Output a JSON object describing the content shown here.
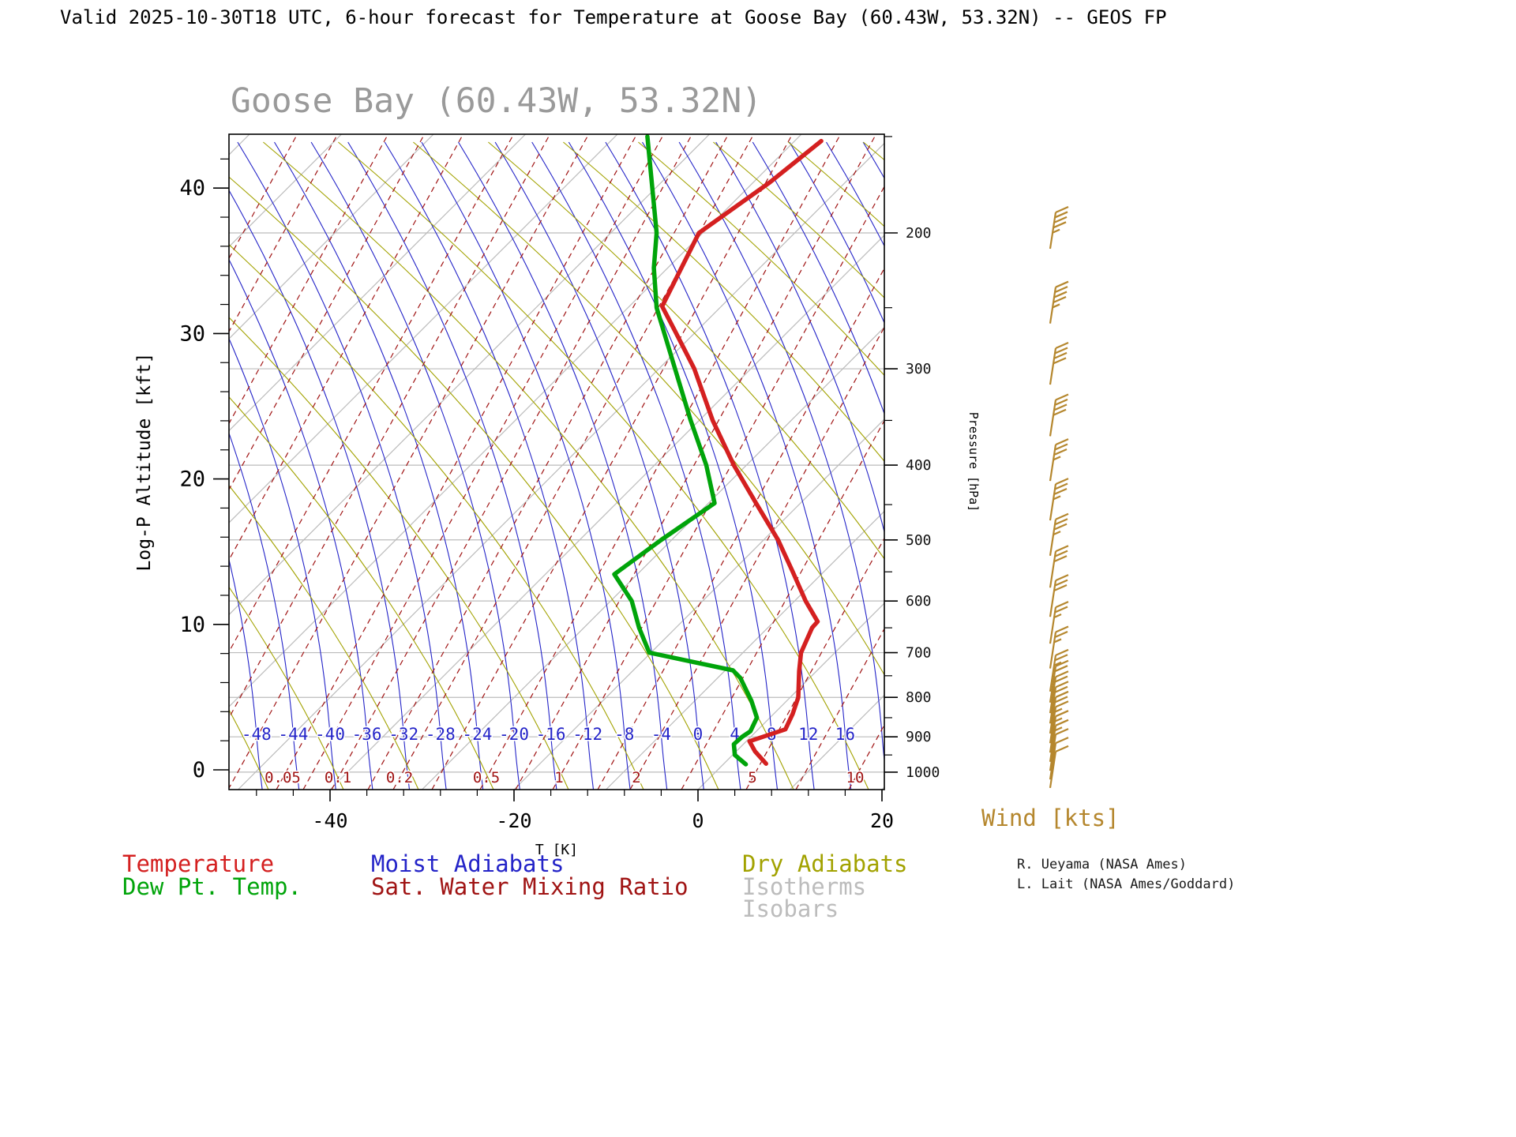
{
  "header": {
    "title": "Valid 2025-10-30T18 UTC, 6-hour forecast for Temperature at Goose Bay (60.43W, 53.32N) -- GEOS FP"
  },
  "chart_data": {
    "type": "skewt_log_p_sounding",
    "title": "Goose Bay (60.43W, 53.32N)",
    "station": {
      "name": "Goose Bay",
      "lon": "60.43W",
      "lat": "53.32N"
    },
    "model": "GEOS FP",
    "valid_time": "2025-10-30T18 UTC",
    "forecast": "6-hour forecast for Temperature",
    "x_axis": {
      "label": "T [K]",
      "ticks": [
        -40,
        -20,
        0,
        20
      ],
      "minor_step": 4
    },
    "y_axis_left": {
      "label": "Log-P Altitude [kft]",
      "ticks": [
        0,
        10,
        20,
        30,
        40
      ],
      "minor_step": 2
    },
    "y_axis_right": {
      "label": "Pressure [hPa]",
      "ticks": [
        200,
        300,
        400,
        500,
        600,
        700,
        800,
        900,
        1000
      ],
      "minor_ticks": [
        150,
        250,
        350,
        450,
        550,
        650,
        750,
        850,
        950
      ]
    },
    "isobars": [
      200,
      300,
      400,
      500,
      600,
      700,
      800,
      900,
      1000
    ],
    "moist_adiabat_labels": [
      -48,
      -44,
      -40,
      -36,
      -32,
      -28,
      -24,
      -20,
      -16,
      -12,
      -8,
      -4,
      0,
      4,
      8,
      12,
      16
    ],
    "mixing_ratio_labels": [
      "0.05",
      "0.1",
      "0.2",
      "0.5",
      "1",
      "2",
      "5",
      "10"
    ],
    "temperature_profile": {
      "note": "points are [pressure_hPa, position_on_skewed_T_axis]",
      "points": [
        [
          975,
          7.4
        ],
        [
          940,
          6.2
        ],
        [
          912,
          5.6
        ],
        [
          880,
          9.5
        ],
        [
          840,
          10.3
        ],
        [
          800,
          10.9
        ],
        [
          740,
          11.0
        ],
        [
          700,
          11.2
        ],
        [
          650,
          12.4
        ],
        [
          638,
          13.0
        ],
        [
          600,
          11.7
        ],
        [
          550,
          10.3
        ],
        [
          500,
          8.7
        ],
        [
          450,
          6.4
        ],
        [
          400,
          3.9
        ],
        [
          350,
          1.6
        ],
        [
          300,
          -0.4
        ],
        [
          268,
          -2.5
        ],
        [
          249,
          -3.9
        ],
        [
          200,
          0.1
        ],
        [
          172,
          7.8
        ],
        [
          152,
          13.4
        ]
      ]
    },
    "dewpoint_profile": {
      "note": "points are [pressure_hPa, position_on_skewed_T_axis]",
      "points": [
        [
          977,
          5.2
        ],
        [
          950,
          4.0
        ],
        [
          920,
          3.9
        ],
        [
          900,
          4.8
        ],
        [
          885,
          5.7
        ],
        [
          850,
          6.4
        ],
        [
          808,
          5.8
        ],
        [
          755,
          4.6
        ],
        [
          738,
          3.8
        ],
        [
          700,
          -5.3
        ],
        [
          650,
          -6.4
        ],
        [
          600,
          -7.2
        ],
        [
          554,
          -9.1
        ],
        [
          500,
          -4.0
        ],
        [
          448,
          1.8
        ],
        [
          400,
          0.9
        ],
        [
          350,
          -0.8
        ],
        [
          300,
          -2.5
        ],
        [
          250,
          -4.5
        ],
        [
          222,
          -4.8
        ],
        [
          200,
          -4.5
        ],
        [
          150,
          -5.5
        ]
      ]
    },
    "wind_barbs": {
      "label": "Wind [kts]",
      "note": "levels are [pressure_hPa, speed_kts_estimated]",
      "levels": [
        [
          200,
          45
        ],
        [
          250,
          45
        ],
        [
          300,
          40
        ],
        [
          350,
          40
        ],
        [
          400,
          35
        ],
        [
          450,
          35
        ],
        [
          500,
          35
        ],
        [
          550,
          30
        ],
        [
          600,
          30
        ],
        [
          650,
          25
        ],
        [
          700,
          25
        ],
        [
          750,
          25
        ],
        [
          775,
          20
        ],
        [
          800,
          20
        ],
        [
          825,
          20
        ],
        [
          850,
          20
        ],
        [
          875,
          15
        ],
        [
          900,
          15
        ],
        [
          925,
          15
        ],
        [
          950,
          10
        ],
        [
          975,
          10
        ],
        [
          1000,
          10
        ]
      ]
    },
    "legend": [
      {
        "label": "Temperature",
        "color": "#d42020"
      },
      {
        "label": "Dew Pt. Temp.",
        "color": "#00a40a"
      },
      {
        "label": "Moist Adiabats",
        "color": "#2424c8"
      },
      {
        "label": "Sat. Water Mixing Ratio",
        "color": "#a01414"
      },
      {
        "label": "Dry Adiabats",
        "color": "#a2a200"
      },
      {
        "label": "Isotherms",
        "color": "#bcbcbc"
      },
      {
        "label": "Isobars",
        "color": "#bcbcbc"
      }
    ],
    "credits": [
      "R. Ueyama (NASA Ames)",
      "L. Lait (NASA Ames/Goddard)"
    ],
    "colors": {
      "temperature": "#d42020",
      "dewpoint": "#00a40a",
      "moist_adiabats": "#2424c8",
      "dry_adiabats": "#a2a200",
      "isotherms": "#bcbcbc",
      "isobars": "#bcbcbc",
      "mixing_ratio": "#a01414",
      "wind": "#b5872e",
      "title": "#9a9a9a",
      "axis": "#000000"
    }
  }
}
